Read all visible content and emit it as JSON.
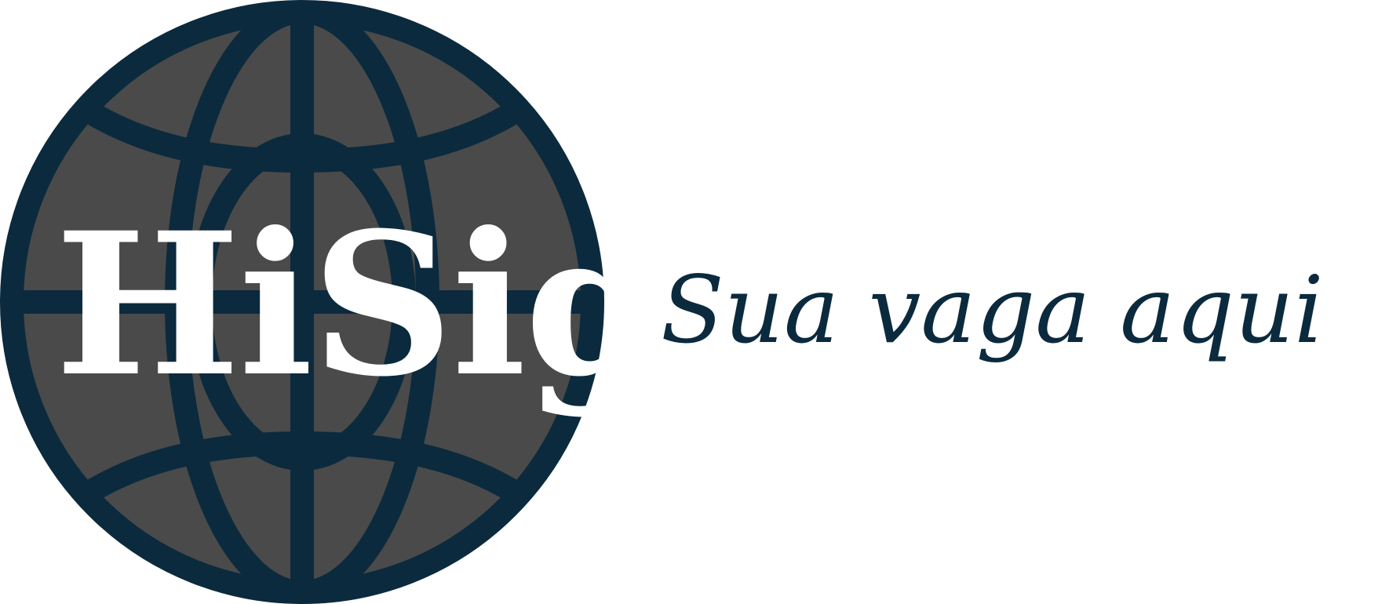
{
  "logo": {
    "brand_name": "HiSig",
    "tagline": "Sua vaga aqui",
    "colors": {
      "navy": "#0b2a3d",
      "globe_fill": "#4a4a4a",
      "brand_text": "#ffffff"
    },
    "icon": "globe-icon"
  }
}
